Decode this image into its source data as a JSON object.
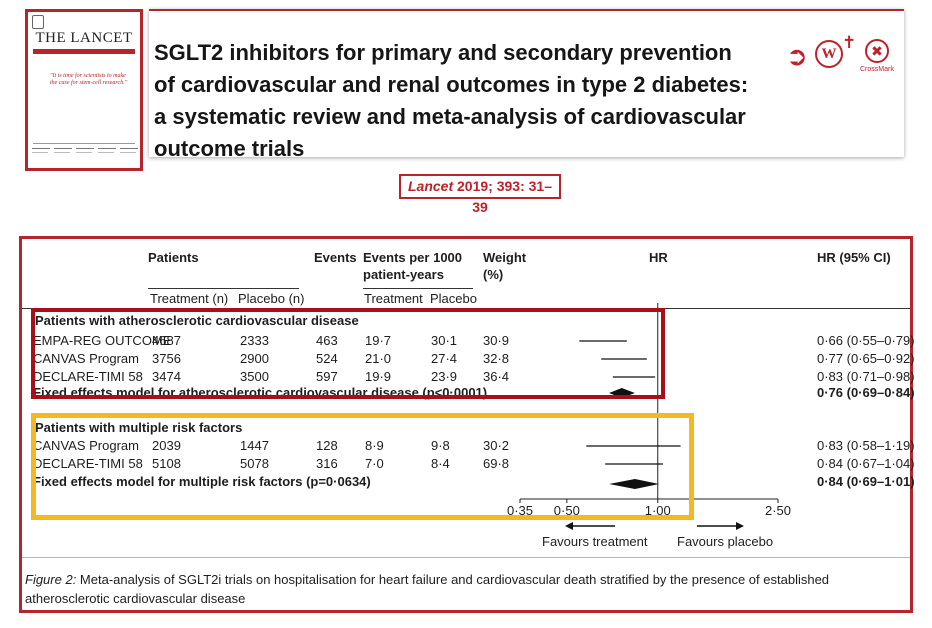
{
  "cover": {
    "journal": "THE LANCET",
    "quote": "\"It is time for scientists to make the case for stem-cell research.\""
  },
  "article": {
    "title": "SGLT2 inhibitors for primary and secondary prevention of cardiovascular and renal outcomes in type 2 diabetes: a systematic review and meta-analysis of cardiovascular outcome trials",
    "title_lines": [
      "SGLT2 inhibitors for primary and secondary prevention",
      "of cardiovascular and renal outcomes in type 2 diabetes:",
      "a systematic review and meta-analysis of cardiovascular",
      "outcome trials"
    ],
    "crossmark_label": "CrossMark",
    "citation_journal": "Lancet",
    "citation_rest": " 2019; 393: 31–39"
  },
  "figure": {
    "headers": {
      "patients": "Patients",
      "treatment": "Treatment (n)",
      "placebo": "Placebo (n)",
      "events": "Events",
      "events_per_1000_l1": "Events per 1000",
      "events_per_1000_l2": "patient-years",
      "ep_treatment": "Treatment",
      "ep_placebo": "Placebo",
      "weight_l1": "Weight",
      "weight_l2": "(%)",
      "hr": "HR",
      "hr_ci": "HR (95% CI)"
    },
    "groups": [
      {
        "heading": "Patients with atherosclerotic cardiovascular disease",
        "rows": [
          {
            "trial": "EMPA-REG OUTCOME",
            "treatment": "4687",
            "placebo": "2333",
            "events": "463",
            "ep_treatment": "19·7",
            "ep_placebo": "30·1",
            "weight": "30·9",
            "hr_ci": "0·66 (0·55–0·79)",
            "hr": 0.66,
            "lo": 0.55,
            "hi": 0.79
          },
          {
            "trial": "CANVAS Program",
            "treatment": "3756",
            "placebo": "2900",
            "events": "524",
            "ep_treatment": "21·0",
            "ep_placebo": "27·4",
            "weight": "32·8",
            "hr_ci": "0·77 (0·65–0·92)",
            "hr": 0.77,
            "lo": 0.65,
            "hi": 0.92
          },
          {
            "trial": "DECLARE-TIMI 58",
            "treatment": "3474",
            "placebo": "3500",
            "events": "597",
            "ep_treatment": "19·9",
            "ep_placebo": "23·9",
            "weight": "36·4",
            "hr_ci": "0·83 (0·71–0·98)",
            "hr": 0.83,
            "lo": 0.71,
            "hi": 0.98
          }
        ],
        "summary": {
          "label": "Fixed effects model for atherosclerotic cardiovascular disease (p<0·0001)",
          "hr_ci": "0·76 (0·69–0·84)",
          "hr": 0.76,
          "lo": 0.69,
          "hi": 0.84
        }
      },
      {
        "heading": "Patients with multiple risk factors",
        "rows": [
          {
            "trial": "CANVAS Program",
            "treatment": "2039",
            "placebo": "1447",
            "events": "128",
            "ep_treatment": "8·9",
            "ep_placebo": "9·8",
            "weight": "30·2",
            "hr_ci": "0·83 (0·58–1·19)",
            "hr": 0.83,
            "lo": 0.58,
            "hi": 1.19
          },
          {
            "trial": "DECLARE-TIMI 58",
            "treatment": "5108",
            "placebo": "5078",
            "events": "316",
            "ep_treatment": "7·0",
            "ep_placebo": "8·4",
            "weight": "69·8",
            "hr_ci": "0·84 (0·67–1·04)",
            "hr": 0.84,
            "lo": 0.67,
            "hi": 1.04
          }
        ],
        "summary": {
          "label": "Fixed effects model for multiple risk factors (p=0·0634)",
          "hr_ci": "0·84 (0·69–1·01)",
          "hr": 0.84,
          "lo": 0.69,
          "hi": 1.01
        }
      }
    ],
    "axis": {
      "ticks": [
        0.35,
        0.5,
        1.0,
        2.5
      ],
      "tick_labels": [
        "0·35",
        "0·50",
        "1·00",
        "2·50"
      ],
      "favours_treatment": "Favours treatment",
      "favours_placebo": "Favours placebo"
    },
    "caption_label": "Figure 2:",
    "caption_text": " Meta-analysis of SGLT2i trials on hospitalisation for heart failure and cardiovascular death stratified by the presence of established atherosclerotic cardiovascular disease"
  },
  "chart_data": {
    "type": "scatter",
    "scale": "log",
    "xlim": [
      0.35,
      2.5
    ],
    "reference_line": 1.0,
    "series": [
      {
        "name": "Patients with atherosclerotic cardiovascular disease",
        "points": [
          {
            "label": "EMPA-REG OUTCOME",
            "hr": 0.66,
            "lo": 0.55,
            "hi": 0.79,
            "weight": 30.9
          },
          {
            "label": "CANVAS Program",
            "hr": 0.77,
            "lo": 0.65,
            "hi": 0.92,
            "weight": 32.8
          },
          {
            "label": "DECLARE-TIMI 58",
            "hr": 0.83,
            "lo": 0.71,
            "hi": 0.98,
            "weight": 36.4
          }
        ],
        "summary": {
          "hr": 0.76,
          "lo": 0.69,
          "hi": 0.84
        }
      },
      {
        "name": "Patients with multiple risk factors",
        "points": [
          {
            "label": "CANVAS Program",
            "hr": 0.83,
            "lo": 0.58,
            "hi": 1.19,
            "weight": 30.2
          },
          {
            "label": "DECLARE-TIMI 58",
            "hr": 0.84,
            "lo": 0.67,
            "hi": 1.04,
            "weight": 69.8
          }
        ],
        "summary": {
          "hr": 0.84,
          "lo": 0.69,
          "hi": 1.01
        }
      }
    ]
  }
}
